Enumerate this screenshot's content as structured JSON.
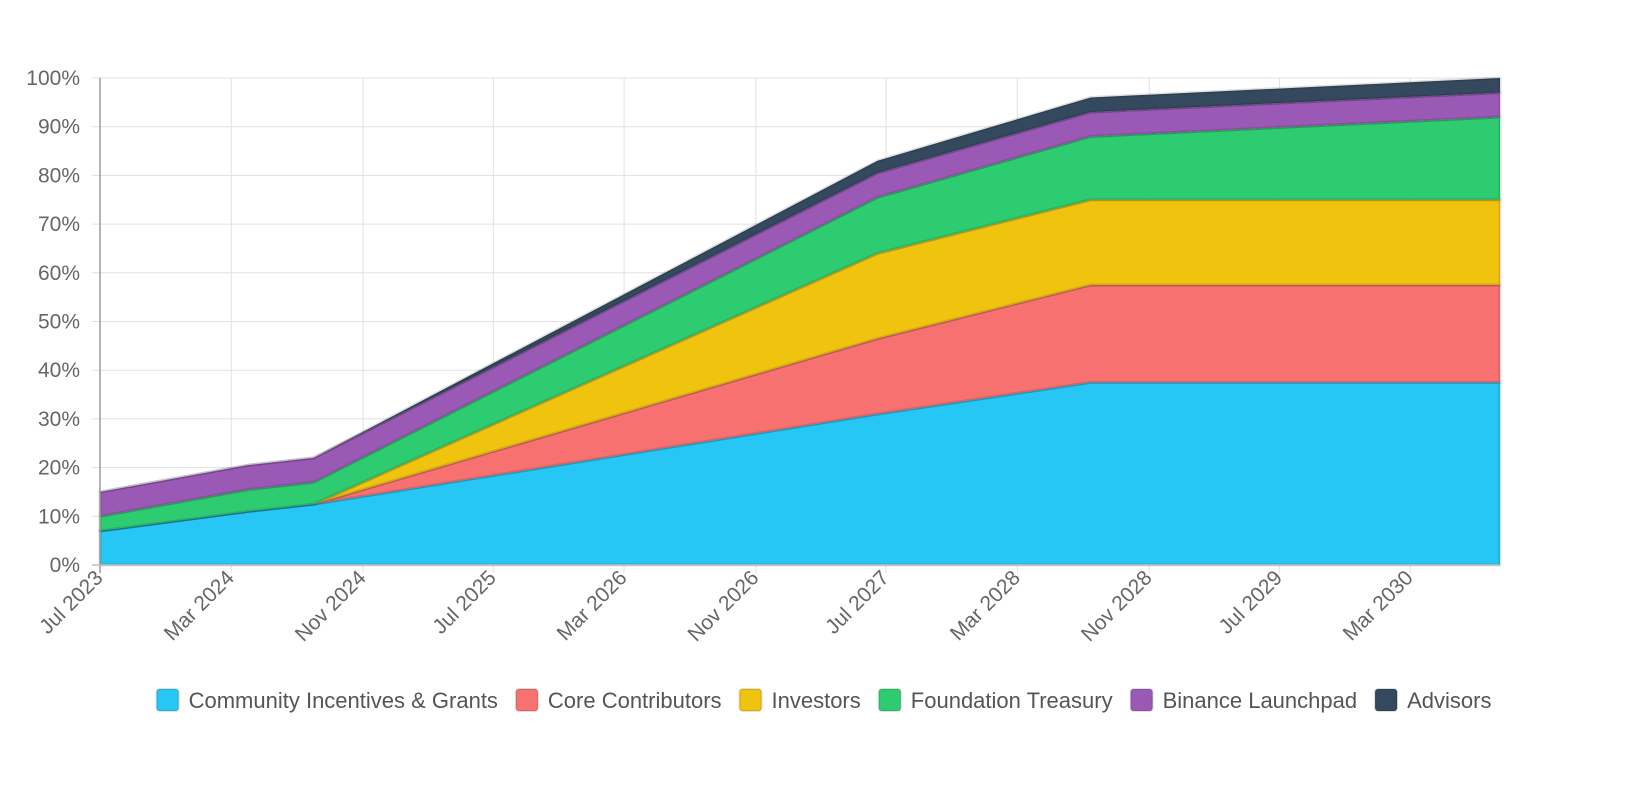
{
  "chart_data": {
    "type": "area",
    "stacked": true,
    "x": [
      "Jul 2023",
      "Apr 2024",
      "Aug 2024",
      "Jun 2027",
      "Jul 2028",
      "Aug 2030"
    ],
    "x_dates": [
      "2023-07-01",
      "2024-04-01",
      "2024-08-01",
      "2027-06-15",
      "2028-07-15",
      "2030-08-15"
    ],
    "x_ticks": [
      "Jul 2023",
      "Mar 2024",
      "Nov 2024",
      "Jul 2025",
      "Mar 2026",
      "Nov 2026",
      "Jul 2027",
      "Mar 2028",
      "Nov 2028",
      "Jul 2029",
      "Mar 2030"
    ],
    "y_ticks": [
      "0%",
      "10%",
      "20%",
      "30%",
      "40%",
      "50%",
      "60%",
      "70%",
      "80%",
      "90%",
      "100%"
    ],
    "ylim": [
      0,
      100
    ],
    "grid": true,
    "legend_position": "bottom",
    "series": [
      {
        "name": "Community Incentives & Grants",
        "color": "#26c6f5",
        "values": [
          7,
          11,
          12.5,
          31,
          37.5,
          37.5
        ]
      },
      {
        "name": "Core Contributors",
        "color": "#f87171",
        "values": [
          0,
          0,
          0,
          15.5,
          20,
          20
        ]
      },
      {
        "name": "Investors",
        "color": "#f0c30f",
        "values": [
          0,
          0,
          0,
          17.5,
          17.5,
          17.5
        ]
      },
      {
        "name": "Foundation Treasury",
        "color": "#2ecc71",
        "values": [
          3,
          4.5,
          4.5,
          11.5,
          13,
          17
        ]
      },
      {
        "name": "Binance Launchpad",
        "color": "#9b59b6",
        "values": [
          5,
          5,
          5,
          5,
          5,
          5
        ]
      },
      {
        "name": "Advisors",
        "color": "#34495e",
        "values": [
          0,
          0,
          0,
          2.5,
          3,
          3
        ]
      }
    ]
  }
}
